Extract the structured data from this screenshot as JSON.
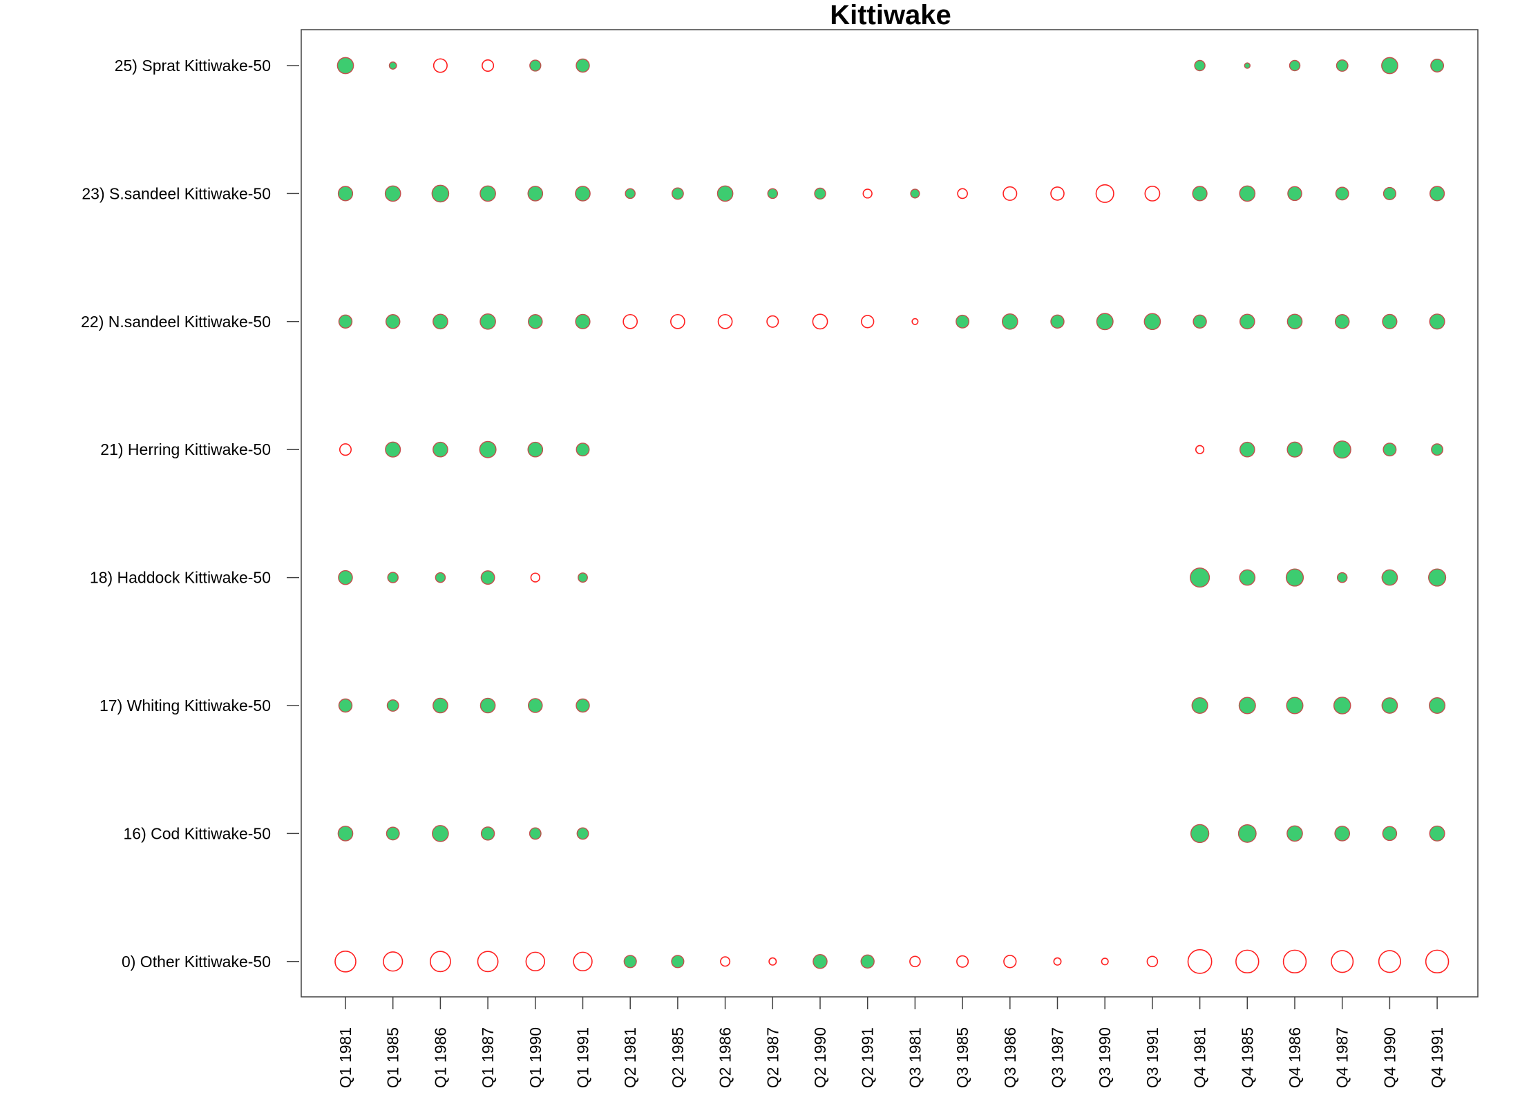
{
  "chart_data": {
    "type": "scatter",
    "title": "Kittiwake",
    "xlabel": "",
    "ylabel": "",
    "categories": [
      "Q1 1981",
      "Q1 1985",
      "Q1 1986",
      "Q1 1987",
      "Q1 1990",
      "Q1 1991",
      "Q2 1981",
      "Q2 1985",
      "Q2 1986",
      "Q2 1987",
      "Q2 1990",
      "Q2 1991",
      "Q3 1981",
      "Q3 1985",
      "Q3 1986",
      "Q3 1987",
      "Q3 1990",
      "Q3 1991",
      "Q4 1981",
      "Q4 1985",
      "Q4 1986",
      "Q4 1987",
      "Q4 1990",
      "Q4 1991"
    ],
    "rows": [
      "0) Other Kittiwake-50",
      "16) Cod Kittiwake-50",
      "17) Whiting Kittiwake-50",
      "18) Haddock Kittiwake-50",
      "21) Herring Kittiwake-50",
      "22) N.sandeel Kittiwake-50",
      "23) S.sandeel Kittiwake-50",
      "25) Sprat Kittiwake-50"
    ],
    "encoding": {
      "positive": "filled",
      "negative": "open"
    },
    "colors": {
      "positive_fill": "#3dcc70",
      "positive_stroke": "#c0504d",
      "negative_stroke": "#ff2020",
      "axis": "#404040"
    },
    "grid": false,
    "legend": "none",
    "values": [
      [
        -1.0,
        -0.85,
        -0.95,
        -0.95,
        -0.8,
        -0.8,
        0.35,
        0.35,
        -0.2,
        -0.12,
        0.45,
        0.4,
        -0.25,
        -0.3,
        -0.35,
        -0.12,
        -0.1,
        -0.25,
        -1.3,
        -1.2,
        -1.2,
        -1.1,
        -1.1,
        -1.2
      ],
      [
        0.5,
        0.38,
        0.6,
        0.4,
        0.3,
        0.3,
        null,
        null,
        null,
        null,
        null,
        null,
        null,
        null,
        null,
        null,
        null,
        null,
        0.75,
        0.72,
        0.55,
        0.5,
        0.45,
        0.52
      ],
      [
        0.4,
        0.3,
        0.5,
        0.5,
        0.45,
        0.4,
        null,
        null,
        null,
        null,
        null,
        null,
        null,
        null,
        null,
        null,
        null,
        null,
        0.57,
        0.62,
        0.62,
        0.65,
        0.55,
        0.57
      ],
      [
        0.45,
        0.25,
        0.22,
        0.42,
        -0.18,
        0.2,
        null,
        null,
        null,
        null,
        null,
        null,
        null,
        null,
        null,
        null,
        null,
        null,
        0.85,
        0.55,
        0.68,
        0.22,
        0.55,
        0.68
      ],
      [
        -0.3,
        0.52,
        0.5,
        0.62,
        0.5,
        0.38,
        null,
        null,
        null,
        null,
        null,
        null,
        null,
        null,
        null,
        null,
        null,
        null,
        -0.15,
        0.5,
        0.52,
        0.68,
        0.38,
        0.3
      ],
      [
        0.4,
        0.45,
        0.5,
        0.55,
        0.45,
        0.48,
        -0.45,
        -0.45,
        -0.45,
        -0.3,
        -0.5,
        -0.35,
        -0.08,
        0.38,
        0.55,
        0.4,
        0.62,
        0.6,
        0.4,
        0.5,
        0.5,
        0.45,
        0.48,
        0.52
      ],
      [
        0.48,
        0.55,
        0.65,
        0.55,
        0.5,
        0.5,
        0.22,
        0.3,
        0.55,
        0.22,
        0.28,
        -0.18,
        0.18,
        -0.22,
        -0.42,
        -0.4,
        -0.72,
        -0.5,
        0.48,
        0.55,
        0.45,
        0.38,
        0.35,
        0.48
      ],
      [
        0.6,
        0.12,
        -0.42,
        -0.3,
        0.28,
        0.4,
        null,
        null,
        null,
        null,
        null,
        null,
        null,
        null,
        null,
        null,
        null,
        null,
        0.25,
        0.07,
        0.25,
        0.3,
        0.6,
        0.38
      ]
    ]
  }
}
